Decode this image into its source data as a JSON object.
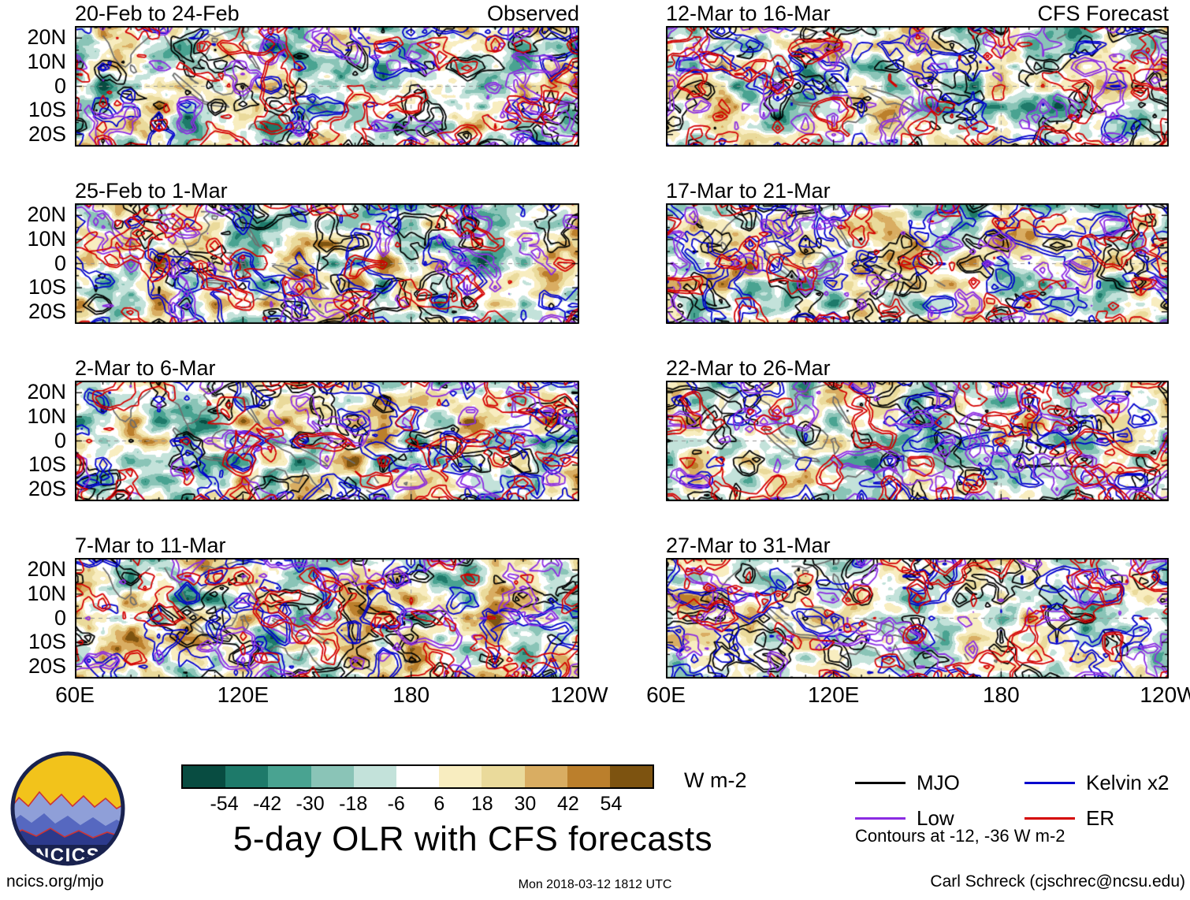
{
  "figure_title": "5-day OLR with CFS forecasts",
  "footer": {
    "left": "ncics.org/mjo",
    "center": "Mon 2018-03-12 1812 UTC",
    "right": "Carl Schreck (cjschrec@ncsu.edu)"
  },
  "logo": {
    "text": "NCICS"
  },
  "chart_data": {
    "type": "heatmap",
    "title": "5-day OLR with CFS forecasts",
    "units": "W m-2",
    "lon_range_deg_east": [
      60,
      240
    ],
    "lat_range_deg_north": [
      -25,
      25
    ],
    "grid": "dashed reference lines at equator and 180",
    "x_ticks": [
      {
        "label": "60E",
        "lon": 60
      },
      {
        "label": "120E",
        "lon": 120
      },
      {
        "label": "180",
        "lon": 180
      },
      {
        "label": "120W",
        "lon": 240
      }
    ],
    "y_ticks": [
      {
        "label": "20N",
        "lat": 20
      },
      {
        "label": "10N",
        "lat": 10
      },
      {
        "label": "0",
        "lat": 0
      },
      {
        "label": "10S",
        "lat": -10
      },
      {
        "label": "20S",
        "lat": -20
      }
    ],
    "columns": [
      {
        "header": "Observed"
      },
      {
        "header": "CFS Forecast"
      }
    ],
    "panels": [
      {
        "title": "20-Feb to 24-Feb",
        "corner": "Observed",
        "col": 0,
        "row": 0,
        "seed": 20224,
        "amp": 1.05
      },
      {
        "title": "25-Feb to 1-Mar",
        "corner": "",
        "col": 0,
        "row": 1,
        "seed": 25031,
        "amp": 1.0
      },
      {
        "title": "2-Mar to 6-Mar",
        "corner": "",
        "col": 0,
        "row": 2,
        "seed": 20306,
        "amp": 1.0
      },
      {
        "title": "7-Mar to 11-Mar",
        "corner": "",
        "col": 0,
        "row": 3,
        "seed": 70311,
        "amp": 1.05
      },
      {
        "title": "12-Mar to 16-Mar",
        "corner": "CFS Forecast",
        "col": 1,
        "row": 0,
        "seed": 12316,
        "amp": 1.0
      },
      {
        "title": "17-Mar to 21-Mar",
        "corner": "",
        "col": 1,
        "row": 1,
        "seed": 17321,
        "amp": 0.95
      },
      {
        "title": "22-Mar to 26-Mar",
        "corner": "",
        "col": 1,
        "row": 2,
        "seed": 22326,
        "amp": 0.9
      },
      {
        "title": "27-Mar to 31-Mar",
        "corner": "",
        "col": 1,
        "row": 3,
        "seed": 27331,
        "amp": 0.85
      }
    ],
    "colorbar": {
      "levels": [
        -54,
        -42,
        -30,
        -18,
        -6,
        6,
        18,
        30,
        42,
        54
      ],
      "colors": [
        "#084c41",
        "#1e7a6a",
        "#49a391",
        "#8ac4b7",
        "#c3e2da",
        "#ffffff",
        "#f8edc0",
        "#eada9b",
        "#d9ad62",
        "#bb7f2c",
        "#7d5310"
      ],
      "label": "W m-2"
    },
    "legend": [
      {
        "label": "MJO",
        "color": "#000000"
      },
      {
        "label": "Kelvin x2",
        "color": "#0000cd"
      },
      {
        "label": "Low",
        "color": "#8b2be2"
      },
      {
        "label": "ER",
        "color": "#d40000"
      }
    ],
    "contour_note": "Contours at -12, -36 W m-2",
    "contour_levels_wm2": [
      -12,
      -36
    ]
  },
  "coastlines": [
    [
      [
        70,
        21
      ],
      [
        72,
        18
      ],
      [
        73,
        15
      ],
      [
        74,
        12
      ],
      [
        76,
        9
      ],
      [
        78,
        8
      ],
      [
        80,
        10
      ],
      [
        80,
        13
      ],
      [
        82,
        16
      ],
      [
        85,
        19
      ],
      [
        87,
        21
      ]
    ],
    [
      [
        80,
        9
      ],
      [
        81.2,
        8
      ],
      [
        82,
        6
      ],
      [
        81,
        5.5
      ],
      [
        80,
        6.5
      ],
      [
        79.8,
        8
      ],
      [
        80,
        9
      ]
    ],
    [
      [
        92,
        21
      ],
      [
        94,
        17
      ],
      [
        97,
        15
      ],
      [
        98,
        12
      ],
      [
        99,
        9
      ],
      [
        100,
        7
      ],
      [
        102,
        7.5
      ],
      [
        104,
        9
      ],
      [
        105,
        12
      ],
      [
        107,
        13.5
      ],
      [
        108,
        16
      ],
      [
        106,
        19
      ],
      [
        108,
        21
      ]
    ],
    [
      [
        100,
        7
      ],
      [
        101,
        4
      ],
      [
        103,
        1.5
      ],
      [
        104,
        1.2
      ],
      [
        101.5,
        2.8
      ],
      [
        100.2,
        5
      ]
    ],
    [
      [
        95.5,
        5.5
      ],
      [
        97,
        4
      ],
      [
        99,
        2
      ],
      [
        101,
        0
      ],
      [
        103,
        -2
      ],
      [
        105,
        -4
      ],
      [
        106,
        -6
      ],
      [
        104.5,
        -5.5
      ],
      [
        102,
        -3.5
      ],
      [
        99,
        -1
      ],
      [
        96.5,
        2
      ],
      [
        95,
        4.5
      ],
      [
        95.5,
        5.5
      ]
    ],
    [
      [
        105.5,
        -6.2
      ],
      [
        108,
        -6.8
      ],
      [
        111,
        -6.9
      ],
      [
        114,
        -7.5
      ],
      [
        115,
        -8.6
      ],
      [
        112,
        -8.3
      ],
      [
        108,
        -7.8
      ],
      [
        105.5,
        -7
      ],
      [
        105.5,
        -6.2
      ]
    ],
    [
      [
        109,
        1.5
      ],
      [
        110.5,
        3.5
      ],
      [
        113,
        4.6
      ],
      [
        116,
        4.4
      ],
      [
        118,
        2
      ],
      [
        117.5,
        0
      ],
      [
        116,
        -3
      ],
      [
        113,
        -3.6
      ],
      [
        110,
        -2
      ],
      [
        109,
        0
      ],
      [
        109,
        1.5
      ]
    ],
    [
      [
        119,
        0.5
      ],
      [
        120.5,
        1.2
      ],
      [
        121,
        -1
      ],
      [
        122,
        -2.5
      ],
      [
        121.5,
        -4
      ],
      [
        120.4,
        -5.6
      ],
      [
        120,
        -3
      ],
      [
        119.8,
        -1
      ],
      [
        119,
        0.5
      ]
    ],
    [
      [
        120,
        18.5
      ],
      [
        121.5,
        17
      ],
      [
        122,
        15
      ],
      [
        123,
        13
      ],
      [
        124,
        11
      ],
      [
        125,
        9
      ],
      [
        126,
        7
      ],
      [
        124.5,
        8
      ],
      [
        123.5,
        10
      ],
      [
        122,
        12
      ],
      [
        121,
        14
      ],
      [
        119.8,
        16
      ],
      [
        120,
        18.5
      ]
    ],
    [
      [
        131,
        -0.5
      ],
      [
        134,
        -1
      ],
      [
        137,
        -2
      ],
      [
        140,
        -3
      ],
      [
        143,
        -4.5
      ],
      [
        146,
        -6.5
      ],
      [
        149,
        -9
      ],
      [
        150.5,
        -10.5
      ],
      [
        148,
        -10
      ],
      [
        145,
        -8
      ],
      [
        142,
        -7
      ],
      [
        139,
        -7.6
      ],
      [
        137,
        -5
      ],
      [
        134,
        -3.5
      ],
      [
        132,
        -2
      ],
      [
        130.5,
        -1
      ],
      [
        131,
        -0.5
      ]
    ],
    [
      [
        122,
        -18
      ],
      [
        123,
        -16
      ],
      [
        125,
        -14.5
      ],
      [
        128,
        -15
      ],
      [
        130,
        -13
      ],
      [
        132,
        -11.5
      ],
      [
        135,
        -12.5
      ],
      [
        136,
        -15
      ],
      [
        138,
        -17
      ],
      [
        140,
        -17.5
      ],
      [
        141,
        -15
      ],
      [
        142,
        -11
      ],
      [
        143.5,
        -14
      ],
      [
        145,
        -17
      ],
      [
        147,
        -19.5
      ],
      [
        149,
        -21
      ]
    ],
    [
      [
        105,
        21.5
      ],
      [
        108,
        21.5
      ],
      [
        110,
        20.5
      ],
      [
        113,
        22
      ],
      [
        117,
        23.3
      ],
      [
        120,
        24.5
      ]
    ],
    [
      [
        109,
        20
      ],
      [
        111,
        19.6
      ],
      [
        110.5,
        18.3
      ],
      [
        109,
        18.6
      ],
      [
        109,
        20
      ]
    ],
    [
      [
        121,
        25
      ],
      [
        122,
        24
      ],
      [
        121.5,
        22.6
      ],
      [
        120.6,
        22.4
      ],
      [
        120.1,
        23.8
      ],
      [
        121,
        25
      ]
    ],
    [
      [
        156,
        -6.8
      ],
      [
        158,
        -8
      ],
      [
        160,
        -9.4
      ]
    ],
    [
      [
        166.8,
        -14.8
      ],
      [
        167.6,
        -16.3
      ],
      [
        168.4,
        -17.6
      ]
    ],
    [
      [
        164,
        -20.4
      ],
      [
        165.5,
        -21.3
      ],
      [
        167,
        -22.3
      ]
    ],
    [
      [
        177.4,
        -17.6
      ],
      [
        178.6,
        -17.2
      ],
      [
        178.3,
        -18.3
      ],
      [
        177.4,
        -17.6
      ]
    ],
    [
      [
        200,
        19.7
      ],
      [
        201.6,
        20.6
      ],
      [
        203.4,
        21.7
      ]
    ]
  ]
}
